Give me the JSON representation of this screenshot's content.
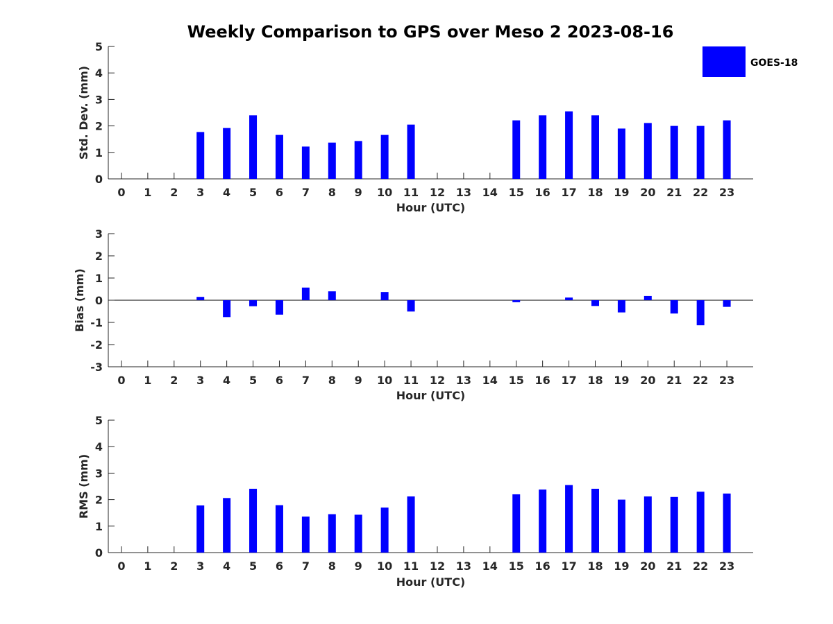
{
  "title": "Weekly Comparison to GPS over Meso 2 2023-08-16",
  "legend": {
    "label": "GOES-18",
    "color": "#0000ff",
    "placement": "top-right"
  },
  "chart_data": [
    {
      "type": "bar",
      "categories": [
        "0",
        "1",
        "2",
        "3",
        "4",
        "5",
        "6",
        "7",
        "8",
        "9",
        "10",
        "11",
        "12",
        "13",
        "14",
        "15",
        "16",
        "17",
        "18",
        "19",
        "20",
        "21",
        "22",
        "23"
      ],
      "series": [
        {
          "name": "GOES-18",
          "values": [
            null,
            null,
            null,
            1.77,
            1.92,
            2.4,
            1.66,
            1.22,
            1.37,
            1.43,
            1.66,
            2.05,
            null,
            null,
            null,
            2.21,
            2.4,
            2.55,
            2.4,
            1.9,
            2.11,
            2.0,
            2.0,
            2.21
          ]
        }
      ],
      "xlabel": "Hour (UTC)",
      "ylabel": "Std. Dev. (mm)",
      "ylim": [
        0,
        5
      ],
      "yticks": [
        "0",
        "1",
        "2",
        "3",
        "4",
        "5"
      ],
      "color": "#0000ff",
      "grid": false
    },
    {
      "type": "bar",
      "categories": [
        "0",
        "1",
        "2",
        "3",
        "4",
        "5",
        "6",
        "7",
        "8",
        "9",
        "10",
        "11",
        "12",
        "13",
        "14",
        "15",
        "16",
        "17",
        "18",
        "19",
        "20",
        "21",
        "22",
        "23"
      ],
      "series": [
        {
          "name": "GOES-18",
          "values": [
            null,
            null,
            null,
            0.15,
            -0.76,
            -0.27,
            -0.65,
            0.57,
            0.4,
            null,
            0.37,
            -0.51,
            null,
            null,
            null,
            -0.09,
            null,
            0.12,
            -0.26,
            -0.55,
            0.19,
            -0.6,
            -1.13,
            -0.3
          ]
        }
      ],
      "xlabel": "Hour (UTC)",
      "ylabel": "Bias (mm)",
      "ylim": [
        -3,
        3
      ],
      "yticks": [
        "-3",
        "-2",
        "-1",
        "0",
        "1",
        "2",
        "3"
      ],
      "zero_line": true,
      "color": "#0000ff",
      "grid": false
    },
    {
      "type": "bar",
      "categories": [
        "0",
        "1",
        "2",
        "3",
        "4",
        "5",
        "6",
        "7",
        "8",
        "9",
        "10",
        "11",
        "12",
        "13",
        "14",
        "15",
        "16",
        "17",
        "18",
        "19",
        "20",
        "21",
        "22",
        "23"
      ],
      "series": [
        {
          "name": "GOES-18",
          "values": [
            null,
            null,
            null,
            1.78,
            2.06,
            2.41,
            1.79,
            1.36,
            1.45,
            1.43,
            1.7,
            2.12,
            null,
            null,
            null,
            2.2,
            2.38,
            2.55,
            2.41,
            2.0,
            2.12,
            2.1,
            2.3,
            2.23
          ]
        }
      ],
      "xlabel": "Hour (UTC)",
      "ylabel": "RMS (mm)",
      "ylim": [
        0,
        5
      ],
      "yticks": [
        "0",
        "1",
        "2",
        "3",
        "4",
        "5"
      ],
      "color": "#0000ff",
      "grid": false
    }
  ]
}
